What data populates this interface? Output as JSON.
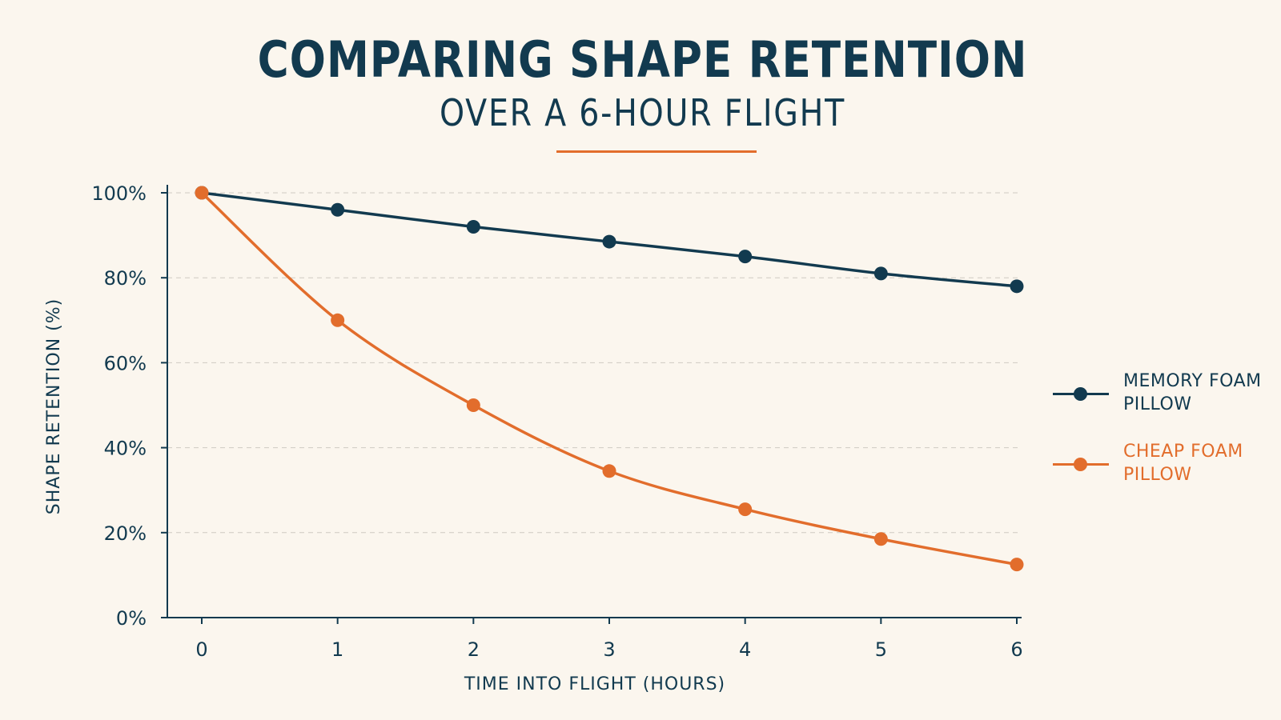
{
  "chart_data": {
    "type": "line",
    "title": "COMPARING SHAPE RETENTION",
    "subtitle": "OVER A 6-HOUR FLIGHT",
    "xlabel": "TIME INTO FLIGHT (HOURS)",
    "ylabel": "SHAPE RETENTION (%)",
    "x": [
      0,
      1,
      2,
      3,
      4,
      5,
      6
    ],
    "x_ticks": [
      "0",
      "1",
      "2",
      "3",
      "4",
      "5",
      "6"
    ],
    "xlim": [
      0,
      6
    ],
    "y_ticks": [
      "0%",
      "20%",
      "40%",
      "60%",
      "80%",
      "100%"
    ],
    "ylim": [
      0,
      100
    ],
    "grid": "horizontal dashed",
    "legend_position": "right",
    "series": [
      {
        "name": "MEMORY FOAM PILLOW",
        "color": "#123a4f",
        "values": [
          100,
          96,
          92,
          88.5,
          85,
          81,
          78
        ]
      },
      {
        "name": "CHEAP FOAM PILLOW",
        "color": "#e26d2c",
        "values": [
          100,
          70,
          50,
          34.5,
          25.5,
          18.5,
          12.5
        ]
      }
    ],
    "colors": {
      "background": "#fbf6ee",
      "axis": "#123a4f",
      "grid": "#cfcac2",
      "accent": "#e26d2c"
    }
  }
}
